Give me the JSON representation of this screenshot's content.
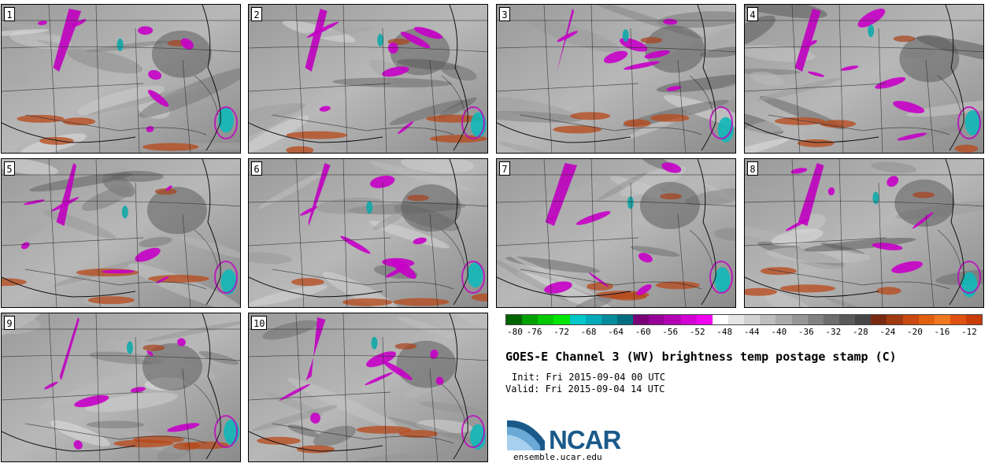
{
  "panels": [
    {
      "label": "1"
    },
    {
      "label": "2"
    },
    {
      "label": "3"
    },
    {
      "label": "4"
    },
    {
      "label": "5"
    },
    {
      "label": "6"
    },
    {
      "label": "7"
    },
    {
      "label": "8"
    },
    {
      "label": "9"
    },
    {
      "label": "10"
    }
  ],
  "colorbar": {
    "ticks": [
      "-80",
      "-76",
      "-72",
      "-68",
      "-64",
      "-60",
      "-56",
      "-52",
      "-48",
      "-44",
      "-40",
      "-36",
      "-32",
      "-28",
      "-24",
      "-20",
      "-16",
      "-12"
    ],
    "colors": [
      "#006400",
      "#00a000",
      "#00c800",
      "#00e600",
      "#00c8c8",
      "#00aabb",
      "#008c9c",
      "#006e80",
      "#780078",
      "#960096",
      "#b400b4",
      "#d200d2",
      "#f000f0",
      "#ffffff",
      "#e6e6e6",
      "#d2d2d2",
      "#bebebe",
      "#aaaaaa",
      "#969696",
      "#828282",
      "#6e6e6e",
      "#5a5a5a",
      "#464646",
      "#7a2a10",
      "#a03a10",
      "#c84a10",
      "#e06010",
      "#f07820",
      "#e05010",
      "#c83c08"
    ]
  },
  "title": "GOES-E Channel 3 (WV) brightness temp postage stamp (C)",
  "init": "Init: Fri 2015-09-04 00 UTC",
  "valid": "Valid: Fri 2015-09-04 14 UTC",
  "logo": {
    "text": "NCAR",
    "site": "ensemble.ucar.edu"
  }
}
